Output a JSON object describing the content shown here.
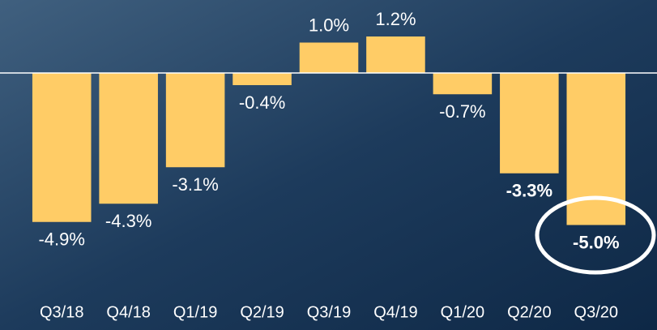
{
  "chart_data": {
    "type": "bar",
    "categories": [
      "Q3/18",
      "Q4/18",
      "Q1/19",
      "Q2/19",
      "Q3/19",
      "Q4/19",
      "Q1/20",
      "Q2/20",
      "Q3/20"
    ],
    "values": [
      -4.9,
      -4.3,
      -3.1,
      -0.4,
      1.0,
      1.2,
      -0.7,
      -3.3,
      -5.0
    ],
    "value_labels": [
      "-4.9%",
      "-4.3%",
      "-3.1%",
      "-0.4%",
      "1.0%",
      "1.2%",
      "-0.7%",
      "-3.3%",
      "-5.0%"
    ],
    "bold_labels": [
      false,
      false,
      false,
      false,
      false,
      false,
      false,
      true,
      true
    ],
    "color": "#ffcc66",
    "ylim": [
      -6,
      2
    ]
  }
}
